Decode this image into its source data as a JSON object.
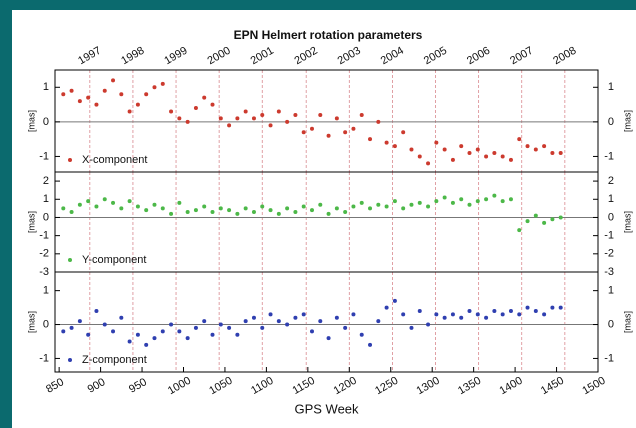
{
  "chart_data": [
    {
      "type": "scatter",
      "title": "EPN Helmert rotation parameters",
      "ylabel": "[mas]",
      "xlim": [
        845,
        1500
      ],
      "ylim": [
        -1.45,
        1.5
      ],
      "yticks": [
        -1,
        0,
        1
      ],
      "x2ticks": [
        {
          "value": 887,
          "label": "1997"
        },
        {
          "value": 939,
          "label": "1998"
        },
        {
          "value": 991,
          "label": "1999"
        },
        {
          "value": 1043,
          "label": "2000"
        },
        {
          "value": 1095,
          "label": "2001"
        },
        {
          "value": 1148,
          "label": "2002"
        },
        {
          "value": 1200,
          "label": "2003"
        },
        {
          "value": 1252,
          "label": "2004"
        },
        {
          "value": 1304,
          "label": "2005"
        },
        {
          "value": 1356,
          "label": "2006"
        },
        {
          "value": 1408,
          "label": "2007"
        },
        {
          "value": 1460,
          "label": "2008"
        }
      ],
      "x": [
        855,
        865,
        875,
        885,
        895,
        905,
        915,
        925,
        935,
        945,
        955,
        965,
        975,
        985,
        995,
        1005,
        1015,
        1025,
        1035,
        1045,
        1055,
        1065,
        1075,
        1085,
        1095,
        1105,
        1115,
        1125,
        1135,
        1145,
        1155,
        1165,
        1175,
        1185,
        1195,
        1205,
        1215,
        1225,
        1235,
        1245,
        1255,
        1265,
        1275,
        1285,
        1295,
        1305,
        1315,
        1325,
        1335,
        1345,
        1355,
        1365,
        1375,
        1385,
        1395,
        1405,
        1415,
        1425,
        1435,
        1445,
        1455
      ],
      "series": [
        {
          "name": "X-component",
          "color": "#cc3a2e",
          "values": [
            0.8,
            0.9,
            0.6,
            0.7,
            0.5,
            0.9,
            1.2,
            0.8,
            0.3,
            0.5,
            0.8,
            1.0,
            1.1,
            0.3,
            0.1,
            0.0,
            0.4,
            0.7,
            0.5,
            0.1,
            -0.1,
            0.1,
            0.3,
            0.1,
            0.2,
            -0.1,
            0.3,
            0.0,
            0.2,
            -0.3,
            -0.2,
            0.2,
            -0.4,
            0.1,
            -0.3,
            -0.2,
            0.2,
            -0.5,
            0.0,
            -0.6,
            -0.7,
            -0.3,
            -0.8,
            -1.0,
            -1.2,
            -0.6,
            -0.8,
            -1.1,
            -0.7,
            -0.9,
            -0.8,
            -1.0,
            -0.9,
            -1.0,
            -1.1,
            -0.5,
            -0.7,
            -0.8,
            -0.7,
            -0.9,
            -0.9
          ]
        }
      ]
    },
    {
      "type": "scatter",
      "ylabel": "[mas]",
      "xlim": [
        845,
        1500
      ],
      "ylim": [
        -3,
        2.5
      ],
      "yticks": [
        -3,
        -2,
        -1,
        0,
        1,
        2
      ],
      "x": [
        855,
        865,
        875,
        885,
        895,
        905,
        915,
        925,
        935,
        945,
        955,
        965,
        975,
        985,
        995,
        1005,
        1015,
        1025,
        1035,
        1045,
        1055,
        1065,
        1075,
        1085,
        1095,
        1105,
        1115,
        1125,
        1135,
        1145,
        1155,
        1165,
        1175,
        1185,
        1195,
        1205,
        1215,
        1225,
        1235,
        1245,
        1255,
        1265,
        1275,
        1285,
        1295,
        1305,
        1315,
        1325,
        1335,
        1345,
        1355,
        1365,
        1375,
        1385,
        1395,
        1405,
        1415,
        1425,
        1435,
        1445,
        1455
      ],
      "series": [
        {
          "name": "Y-component",
          "color": "#4cb848",
          "values": [
            0.5,
            0.3,
            0.7,
            0.9,
            0.6,
            1.0,
            0.8,
            0.5,
            0.9,
            0.6,
            0.4,
            0.7,
            0.5,
            0.2,
            0.8,
            0.3,
            0.4,
            0.6,
            0.3,
            0.5,
            0.4,
            0.2,
            0.5,
            0.3,
            0.6,
            0.4,
            0.2,
            0.5,
            0.3,
            0.6,
            0.4,
            0.7,
            0.2,
            0.5,
            0.3,
            0.6,
            0.8,
            0.5,
            0.7,
            0.6,
            0.9,
            0.5,
            0.7,
            0.8,
            0.6,
            0.9,
            1.1,
            0.8,
            1.0,
            0.7,
            0.9,
            1.0,
            1.2,
            0.9,
            1.0,
            -0.7,
            -0.2,
            0.1,
            -0.3,
            -0.1,
            0.0
          ]
        }
      ]
    },
    {
      "type": "scatter",
      "ylabel": "[mas]",
      "xlabel": "GPS Week",
      "xlim": [
        845,
        1500
      ],
      "ylim": [
        -1.4,
        1.55
      ],
      "yticks": [
        -1,
        0,
        1
      ],
      "xticks": [
        850,
        900,
        950,
        1000,
        1050,
        1100,
        1150,
        1200,
        1250,
        1300,
        1350,
        1400,
        1450,
        1500
      ],
      "x": [
        855,
        865,
        875,
        885,
        895,
        905,
        915,
        925,
        935,
        945,
        955,
        965,
        975,
        985,
        995,
        1005,
        1015,
        1025,
        1035,
        1045,
        1055,
        1065,
        1075,
        1085,
        1095,
        1105,
        1115,
        1125,
        1135,
        1145,
        1155,
        1165,
        1175,
        1185,
        1195,
        1205,
        1215,
        1225,
        1235,
        1245,
        1255,
        1265,
        1275,
        1285,
        1295,
        1305,
        1315,
        1325,
        1335,
        1345,
        1355,
        1365,
        1375,
        1385,
        1395,
        1405,
        1415,
        1425,
        1435,
        1445,
        1455
      ],
      "series": [
        {
          "name": "Z-component",
          "color": "#2f3fb0",
          "values": [
            -0.2,
            -0.1,
            0.1,
            -0.3,
            0.4,
            0.0,
            -0.2,
            0.2,
            -0.5,
            -0.3,
            -0.6,
            -0.4,
            -0.2,
            0.0,
            -0.2,
            -0.4,
            -0.1,
            0.1,
            -0.3,
            0.0,
            -0.1,
            -0.3,
            0.1,
            0.2,
            -0.1,
            0.3,
            0.1,
            0.0,
            0.2,
            0.3,
            -0.2,
            0.1,
            -0.4,
            0.2,
            -0.1,
            0.3,
            -0.3,
            -0.6,
            0.1,
            0.5,
            0.7,
            0.3,
            -0.1,
            0.4,
            0.0,
            0.3,
            0.2,
            0.3,
            0.2,
            0.4,
            0.3,
            0.2,
            0.4,
            0.3,
            0.4,
            0.3,
            0.5,
            0.4,
            0.3,
            0.5,
            0.5
          ]
        }
      ]
    }
  ]
}
